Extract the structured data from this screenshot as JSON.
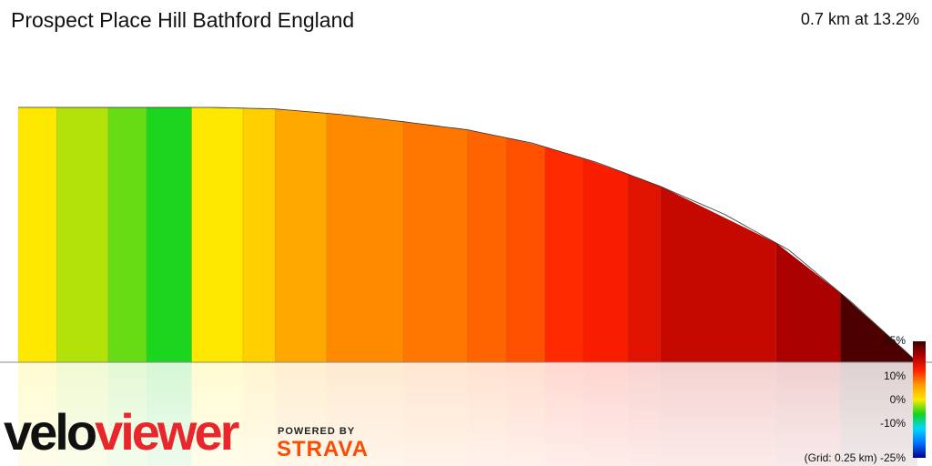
{
  "title": "Prospect Place Hill Bathford England",
  "summary": "0.7 km at 13.2%",
  "scale": {
    "labels": [
      "25%",
      "10%",
      "0%",
      "-10%"
    ],
    "bottom_label": "-25%",
    "grid_note": "(Grid: 0.25 km)",
    "colors": [
      "#3a0000",
      "#b00000",
      "#ff2000",
      "#ff9900",
      "#ffe800",
      "#11d41f",
      "#00d8ff",
      "#0070ff",
      "#000090"
    ]
  },
  "branding": {
    "velo": "velo",
    "viewer": "viewer",
    "powered_by": "POWERED BY",
    "strava": "STRAVA"
  },
  "chart_data": {
    "type": "area",
    "title": "Prospect Place Hill Bathford England",
    "xlabel": "",
    "ylabel": "",
    "x_unit": "km",
    "distance_km": 0.7,
    "average_gradient_pct": 13.2,
    "grid_spacing_km": 0.25,
    "color_by": "gradient",
    "gradient_range_pct": [
      -25,
      25
    ],
    "profile": {
      "x": [
        0,
        0.05,
        0.1,
        0.15,
        0.2,
        0.25,
        0.3,
        0.35,
        0.4,
        0.45,
        0.5,
        0.55,
        0.6,
        0.65,
        0.7
      ],
      "y": [
        1.0,
        1.0,
        1.0,
        1.0,
        0.994,
        0.973,
        0.944,
        0.912,
        0.86,
        0.785,
        0.69,
        0.58,
        0.44,
        0.23,
        0.0
      ]
    },
    "segments": [
      {
        "end_km": 0.03,
        "gradient_pct": 0
      },
      {
        "end_km": 0.07,
        "gradient_pct": -2
      },
      {
        "end_km": 0.1,
        "gradient_pct": -4
      },
      {
        "end_km": 0.135,
        "gradient_pct": -6
      },
      {
        "end_km": 0.175,
        "gradient_pct": 0
      },
      {
        "end_km": 0.2,
        "gradient_pct": 2
      },
      {
        "end_km": 0.24,
        "gradient_pct": 5
      },
      {
        "end_km": 0.3,
        "gradient_pct": 7
      },
      {
        "end_km": 0.35,
        "gradient_pct": 8
      },
      {
        "end_km": 0.38,
        "gradient_pct": 9
      },
      {
        "end_km": 0.41,
        "gradient_pct": 10
      },
      {
        "end_km": 0.44,
        "gradient_pct": 12
      },
      {
        "end_km": 0.475,
        "gradient_pct": 13
      },
      {
        "end_km": 0.5,
        "gradient_pct": 15
      },
      {
        "end_km": 0.59,
        "gradient_pct": 17
      },
      {
        "end_km": 0.64,
        "gradient_pct": 19
      },
      {
        "end_km": 0.7,
        "gradient_pct": 24
      }
    ]
  }
}
